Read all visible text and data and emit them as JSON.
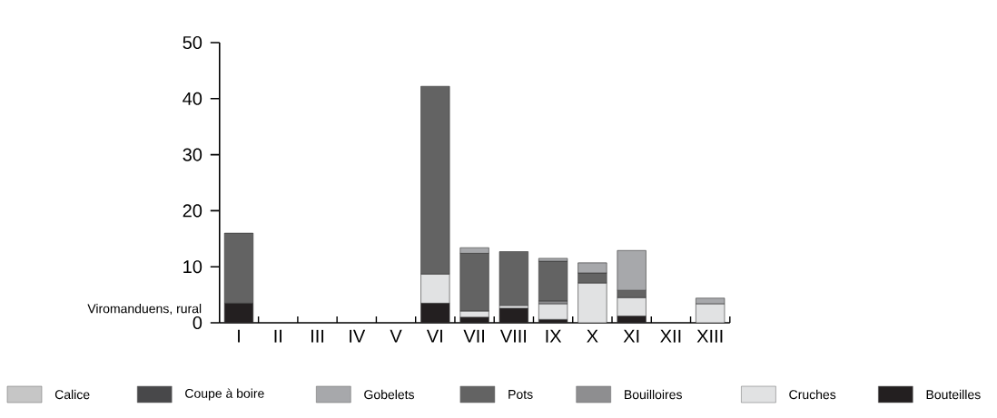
{
  "chart_data": {
    "type": "bar",
    "stacked": true,
    "categories": [
      "I",
      "II",
      "III",
      "IV",
      "V",
      "VI",
      "VII",
      "VIII",
      "IX",
      "X",
      "XI",
      "XII",
      "XIII"
    ],
    "series": [
      {
        "name": "Bouteilles",
        "color": "#231f20",
        "values": [
          3.5,
          null,
          null,
          null,
          null,
          3.5,
          1.0,
          2.6,
          0.6,
          null,
          1.2,
          null,
          null
        ]
      },
      {
        "name": "Cruches",
        "color": "#e1e2e3",
        "values": [
          null,
          null,
          null,
          null,
          null,
          5.2,
          1.1,
          0.5,
          2.8,
          7.1,
          3.3,
          null,
          3.4
        ]
      },
      {
        "name": "Bouilloires",
        "color": "#8e8e90",
        "values": [
          null,
          null,
          null,
          null,
          null,
          null,
          null,
          null,
          0.5,
          null,
          null,
          null,
          null
        ]
      },
      {
        "name": "Pots",
        "color": "#636363",
        "values": [
          12.5,
          null,
          null,
          null,
          null,
          33.5,
          10.3,
          9.6,
          7.1,
          1.8,
          1.3,
          null,
          null
        ]
      },
      {
        "name": "Gobelets",
        "color": "#a7a8ab",
        "values": [
          null,
          null,
          null,
          null,
          null,
          null,
          1.0,
          null,
          0.5,
          1.8,
          7.1,
          null,
          1.0
        ]
      },
      {
        "name": "Coupe à boire",
        "color": "#48484a",
        "values": [
          null,
          null,
          null,
          null,
          null,
          null,
          null,
          null,
          null,
          null,
          null,
          null,
          null
        ]
      },
      {
        "name": "Calice",
        "color": "#c6c6c6",
        "values": [
          null,
          null,
          null,
          null,
          null,
          null,
          null,
          null,
          null,
          null,
          null,
          null,
          null
        ]
      }
    ],
    "ylim": [
      0,
      50
    ],
    "yticks": [
      0,
      10,
      20,
      30,
      40,
      50
    ],
    "grid": false,
    "legend": "bottom",
    "annotations": [
      "Viromanduens, rural"
    ]
  }
}
